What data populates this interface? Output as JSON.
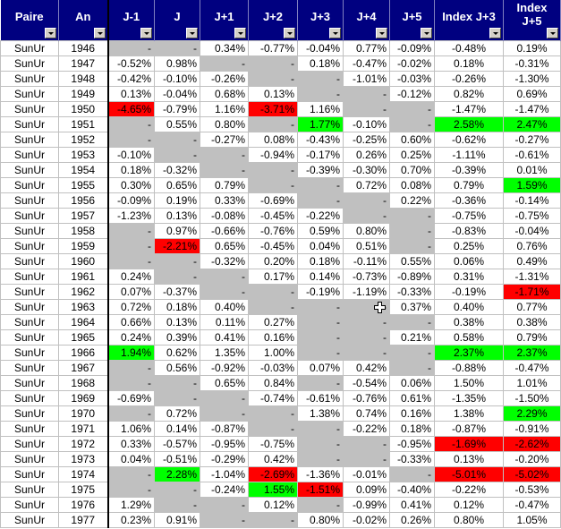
{
  "columns": [
    "Paire",
    "An",
    "J-1",
    "J",
    "J+1",
    "J+2",
    "J+3",
    "J+4",
    "J+5",
    "Index J+3",
    "Index J+5"
  ],
  "colors": {
    "gray": "#c0c0c0",
    "red": "#ff0000",
    "green": "#00ff00",
    "header": "#000080"
  },
  "rows": [
    {
      "pair": "SunUr",
      "year": "1946",
      "v": [
        "-",
        "-",
        "0.34%",
        "-0.77%",
        "-0.04%",
        "0.77%",
        "-0.09%",
        "-0.48%",
        "0.19%"
      ]
    },
    {
      "pair": "SunUr",
      "year": "1947",
      "v": [
        "-0.52%",
        "0.98%",
        "-",
        "-",
        "0.18%",
        "-0.47%",
        "-0.02%",
        "0.18%",
        "-0.31%"
      ]
    },
    {
      "pair": "SunUr",
      "year": "1948",
      "v": [
        "-0.42%",
        "-0.10%",
        "-0.26%",
        "-",
        "-",
        "-1.01%",
        "-0.03%",
        "-0.26%",
        "-1.30%"
      ]
    },
    {
      "pair": "SunUr",
      "year": "1949",
      "v": [
        "0.13%",
        "-0.04%",
        "0.68%",
        "0.13%",
        "-",
        "-",
        "-0.12%",
        "0.82%",
        "0.69%"
      ]
    },
    {
      "pair": "SunUr",
      "year": "1950",
      "v": [
        "-4.65%",
        "-0.79%",
        "1.16%",
        "-3.71%",
        "1.16%",
        "-",
        "-",
        "-1.47%",
        "-1.47%"
      ],
      "hl": {
        "0": "red",
        "3": "red"
      }
    },
    {
      "pair": "SunUr",
      "year": "1951",
      "v": [
        "-",
        "0.55%",
        "0.80%",
        "-",
        "1.77%",
        "-0.10%",
        "-",
        "2.58%",
        "2.47%"
      ],
      "hl": {
        "4": "green",
        "7": "green",
        "8": "green"
      }
    },
    {
      "pair": "SunUr",
      "year": "1952",
      "v": [
        "-",
        "-",
        "-0.27%",
        "0.08%",
        "-0.43%",
        "-0.25%",
        "0.60%",
        "-0.62%",
        "-0.27%"
      ]
    },
    {
      "pair": "SunUr",
      "year": "1953",
      "v": [
        "-0.10%",
        "-",
        "-",
        "-0.94%",
        "-0.17%",
        "0.26%",
        "0.25%",
        "-1.11%",
        "-0.61%"
      ]
    },
    {
      "pair": "SunUr",
      "year": "1954",
      "v": [
        "0.18%",
        "-0.32%",
        "-",
        "-",
        "-0.39%",
        "-0.30%",
        "0.70%",
        "-0.39%",
        "0.01%"
      ]
    },
    {
      "pair": "SunUr",
      "year": "1955",
      "v": [
        "0.30%",
        "0.65%",
        "0.79%",
        "-",
        "-",
        "0.72%",
        "0.08%",
        "0.79%",
        "1.59%"
      ],
      "hl": {
        "8": "green"
      }
    },
    {
      "pair": "SunUr",
      "year": "1956",
      "v": [
        "-0.09%",
        "0.19%",
        "0.33%",
        "-0.69%",
        "-",
        "-",
        "0.22%",
        "-0.36%",
        "-0.14%"
      ]
    },
    {
      "pair": "SunUr",
      "year": "1957",
      "v": [
        "-1.23%",
        "0.13%",
        "-0.08%",
        "-0.45%",
        "-0.22%",
        "-",
        "-",
        "-0.75%",
        "-0.75%"
      ]
    },
    {
      "pair": "SunUr",
      "year": "1958",
      "v": [
        "-",
        "0.97%",
        "-0.66%",
        "-0.76%",
        "0.59%",
        "0.80%",
        "-",
        "-0.83%",
        "-0.04%"
      ]
    },
    {
      "pair": "SunUr",
      "year": "1959",
      "v": [
        "-",
        "-2.21%",
        "0.65%",
        "-0.45%",
        "0.04%",
        "0.51%",
        "-",
        "0.25%",
        "0.76%"
      ],
      "hl": {
        "1": "red"
      }
    },
    {
      "pair": "SunUr",
      "year": "1960",
      "v": [
        "-",
        "-",
        "-0.32%",
        "0.20%",
        "0.18%",
        "-0.11%",
        "0.55%",
        "0.06%",
        "0.49%"
      ]
    },
    {
      "pair": "SunUr",
      "year": "1961",
      "v": [
        "0.24%",
        "-",
        "-",
        "0.17%",
        "0.14%",
        "-0.73%",
        "-0.89%",
        "0.31%",
        "-1.31%"
      ]
    },
    {
      "pair": "SunUr",
      "year": "1962",
      "v": [
        "0.07%",
        "-0.37%",
        "-",
        "-",
        "-0.19%",
        "-1.19%",
        "-0.33%",
        "-0.19%",
        "-1.71%"
      ],
      "hl": {
        "8": "red"
      }
    },
    {
      "pair": "SunUr",
      "year": "1963",
      "v": [
        "0.72%",
        "0.18%",
        "0.40%",
        "-",
        "-",
        "-",
        "0.37%",
        "0.40%",
        "0.77%"
      ]
    },
    {
      "pair": "SunUr",
      "year": "1964",
      "v": [
        "0.66%",
        "0.13%",
        "0.11%",
        "0.27%",
        "-",
        "-",
        "-",
        "0.38%",
        "0.38%"
      ]
    },
    {
      "pair": "SunUr",
      "year": "1965",
      "v": [
        "0.24%",
        "0.39%",
        "0.41%",
        "0.16%",
        "-",
        "-",
        "0.21%",
        "0.58%",
        "0.79%"
      ]
    },
    {
      "pair": "SunUr",
      "year": "1966",
      "v": [
        "1.94%",
        "0.62%",
        "1.35%",
        "1.00%",
        "-",
        "-",
        "-",
        "2.37%",
        "2.37%"
      ],
      "hl": {
        "0": "green",
        "7": "green",
        "8": "green"
      }
    },
    {
      "pair": "SunUr",
      "year": "1967",
      "v": [
        "-",
        "0.56%",
        "-0.92%",
        "-0.03%",
        "0.07%",
        "0.42%",
        "-",
        "-0.88%",
        "-0.47%"
      ]
    },
    {
      "pair": "SunUr",
      "year": "1968",
      "v": [
        "-",
        "-",
        "0.65%",
        "0.84%",
        "-",
        "-0.54%",
        "0.06%",
        "1.50%",
        "1.01%"
      ]
    },
    {
      "pair": "SunUr",
      "year": "1969",
      "v": [
        "-0.69%",
        "-",
        "-",
        "-0.74%",
        "-0.61%",
        "-0.76%",
        "0.61%",
        "-1.35%",
        "-1.50%"
      ]
    },
    {
      "pair": "SunUr",
      "year": "1970",
      "v": [
        "-",
        "0.72%",
        "-",
        "-",
        "1.38%",
        "0.74%",
        "0.16%",
        "1.38%",
        "2.29%"
      ],
      "hl": {
        "8": "green"
      }
    },
    {
      "pair": "SunUr",
      "year": "1971",
      "v": [
        "1.06%",
        "0.14%",
        "-0.87%",
        "-",
        "-",
        "-0.22%",
        "0.18%",
        "-0.87%",
        "-0.91%"
      ]
    },
    {
      "pair": "SunUr",
      "year": "1972",
      "v": [
        "0.33%",
        "-0.57%",
        "-0.95%",
        "-0.75%",
        "-",
        "-",
        "-0.95%",
        "-1.69%",
        "-2.62%"
      ],
      "hl": {
        "7": "red",
        "8": "red"
      }
    },
    {
      "pair": "SunUr",
      "year": "1973",
      "v": [
        "0.04%",
        "-0.51%",
        "-0.29%",
        "0.42%",
        "-",
        "-",
        "-0.33%",
        "0.13%",
        "-0.20%"
      ]
    },
    {
      "pair": "SunUr",
      "year": "1974",
      "v": [
        "-",
        "2.28%",
        "-1.04%",
        "-2.69%",
        "-1.36%",
        "-0.01%",
        "-",
        "-5.01%",
        "-5.02%"
      ],
      "hl": {
        "1": "green",
        "3": "red",
        "7": "red",
        "8": "red"
      }
    },
    {
      "pair": "SunUr",
      "year": "1975",
      "v": [
        "-",
        "-",
        "-0.24%",
        "1.55%",
        "-1.51%",
        "0.09%",
        "-0.40%",
        "-0.22%",
        "-0.53%"
      ],
      "hl": {
        "3": "green",
        "4": "red"
      }
    },
    {
      "pair": "SunUr",
      "year": "1976",
      "v": [
        "1.29%",
        "-",
        "-",
        "0.12%",
        "-",
        "-0.99%",
        "0.41%",
        "0.12%",
        "-0.47%"
      ]
    },
    {
      "pair": "SunUr",
      "year": "1977",
      "v": [
        "0.23%",
        "0.91%",
        "-",
        "-",
        "0.80%",
        "-0.02%",
        "0.26%",
        "0.80%",
        "1.05%"
      ]
    }
  ]
}
